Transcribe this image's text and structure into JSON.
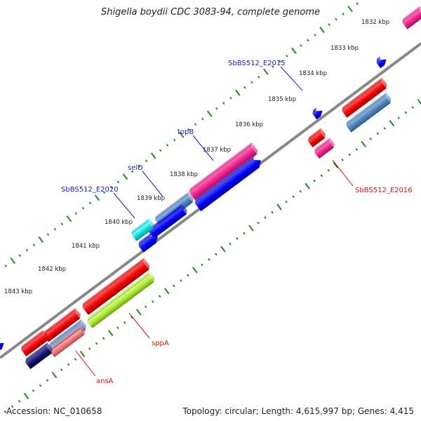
{
  "title": "Shigella boydii CDC 3083-94, complete genome",
  "footer": {
    "accession": "Accession: NC_010658",
    "summary": "Topology: circular; Length: 4,615,997 bp; Genes: 4,415"
  },
  "colors": {
    "backbone": "#8a8a8a",
    "tick": "#1e8c1e",
    "tick_label": "#222222",
    "label_forward": "#1a1acc",
    "label_reverse": "#dd1111"
  },
  "ticks": [
    "1832 kbp",
    "1833 kbp",
    "1834 kbp",
    "1835 kbp",
    "1836 kbp",
    "1837 kbp",
    "1838 kbp",
    "1839 kbp",
    "1840 kbp",
    "1841 kbp",
    "1842 kbp",
    "1843 kbp"
  ],
  "labels": [
    "SbBS512_E2015",
    "topB",
    "selD",
    "SbBS512_E2020",
    "SbBS512_E2016",
    "sppA",
    "ansA"
  ]
}
